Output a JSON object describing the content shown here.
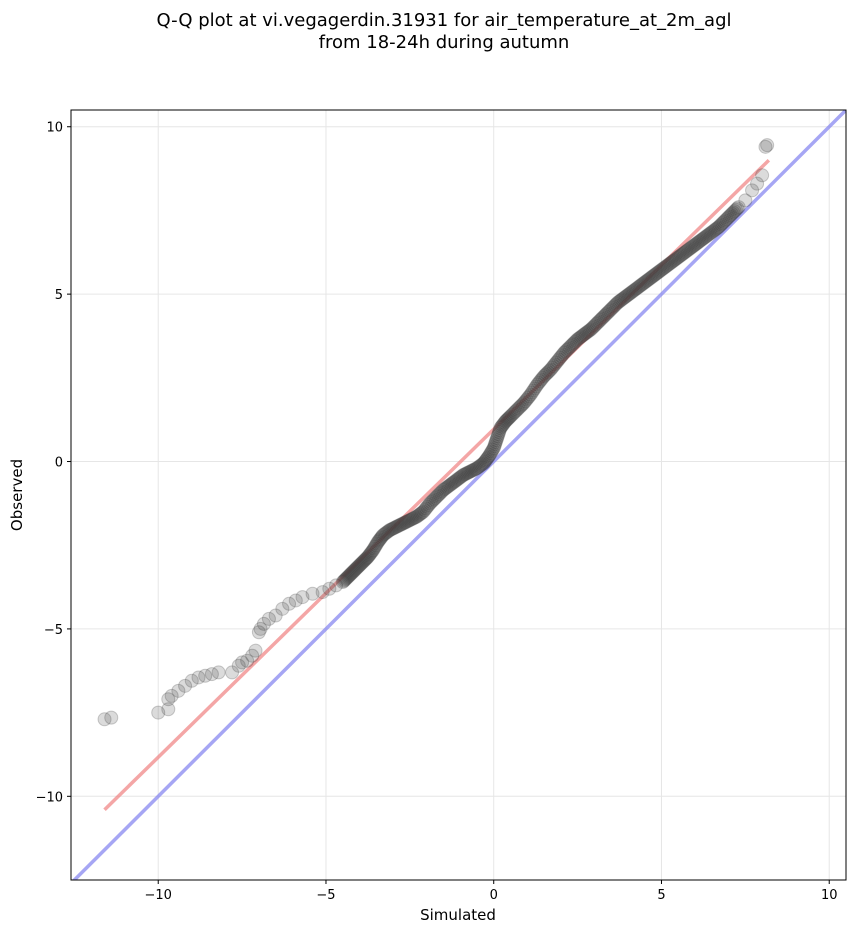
{
  "chart_data": {
    "type": "scatter",
    "title": [
      "Q-Q plot at vi.vegagerdin.31931 for air_temperature_at_2m_agl",
      "from 18-24h during autumn"
    ],
    "xlabel": "Simulated",
    "ylabel": "Observed",
    "xlim": [
      -12.6,
      10.5
    ],
    "ylim": [
      -12.5,
      10.5
    ],
    "xticks": [
      -10,
      -5,
      0,
      5,
      10
    ],
    "yticks": [
      -10,
      -5,
      0,
      5,
      10
    ],
    "xtick_labels": [
      "−10",
      "−5",
      "0",
      "5",
      "10"
    ],
    "ytick_labels": [
      "−10",
      "−5",
      "0",
      "5",
      "10"
    ],
    "grid": true,
    "colors": {
      "points": "#3a3a3a",
      "fit_line": "#f08080",
      "identity_line": "#8080f0",
      "grid": "#e6e6e6"
    },
    "identity_line": {
      "x": [
        -12.6,
        10.5
      ],
      "y": [
        -12.6,
        10.5
      ]
    },
    "fit_line": {
      "x": [
        -11.6,
        8.2
      ],
      "y": [
        -10.4,
        9.0
      ]
    },
    "points": [
      [
        -11.6,
        -7.7
      ],
      [
        -11.4,
        -7.65
      ],
      [
        -10.0,
        -7.5
      ],
      [
        -9.7,
        -7.4
      ],
      [
        -9.7,
        -7.1
      ],
      [
        -9.6,
        -7.0
      ],
      [
        -9.4,
        -6.85
      ],
      [
        -9.2,
        -6.7
      ],
      [
        -9.0,
        -6.55
      ],
      [
        -8.8,
        -6.45
      ],
      [
        -8.6,
        -6.4
      ],
      [
        -8.4,
        -6.35
      ],
      [
        -8.2,
        -6.3
      ],
      [
        -7.8,
        -6.3
      ],
      [
        -7.6,
        -6.1
      ],
      [
        -7.5,
        -6.0
      ],
      [
        -7.35,
        -5.95
      ],
      [
        -7.2,
        -5.8
      ],
      [
        -7.1,
        -5.65
      ],
      [
        -7.0,
        -5.1
      ],
      [
        -6.95,
        -5.0
      ],
      [
        -6.85,
        -4.85
      ],
      [
        -6.7,
        -4.7
      ],
      [
        -6.5,
        -4.6
      ],
      [
        -6.3,
        -4.4
      ],
      [
        -6.1,
        -4.25
      ],
      [
        -5.9,
        -4.15
      ],
      [
        -5.7,
        -4.05
      ],
      [
        -5.4,
        -3.95
      ],
      [
        -5.1,
        -3.9
      ],
      [
        -4.9,
        -3.8
      ],
      [
        -4.7,
        -3.7
      ],
      [
        -4.5,
        -3.6
      ],
      [
        -4.35,
        -3.45
      ],
      [
        -4.2,
        -3.3
      ],
      [
        -4.05,
        -3.15
      ],
      [
        -3.9,
        -3.0
      ],
      [
        -3.75,
        -2.85
      ],
      [
        -3.6,
        -2.65
      ],
      [
        -3.45,
        -2.4
      ],
      [
        -3.3,
        -2.2
      ],
      [
        -3.1,
        -2.05
      ],
      [
        -2.9,
        -1.95
      ],
      [
        -2.7,
        -1.85
      ],
      [
        -2.5,
        -1.75
      ],
      [
        -2.3,
        -1.65
      ],
      [
        -2.1,
        -1.5
      ],
      [
        -1.9,
        -1.25
      ],
      [
        -1.7,
        -1.05
      ],
      [
        -1.5,
        -0.85
      ],
      [
        -1.3,
        -0.7
      ],
      [
        -1.1,
        -0.55
      ],
      [
        -0.9,
        -0.4
      ],
      [
        -0.7,
        -0.3
      ],
      [
        -0.5,
        -0.2
      ],
      [
        -0.3,
        -0.05
      ],
      [
        -0.15,
        0.15
      ],
      [
        0.0,
        0.4
      ],
      [
        0.1,
        0.7
      ],
      [
        0.2,
        1.0
      ],
      [
        0.35,
        1.2
      ],
      [
        0.5,
        1.35
      ],
      [
        0.7,
        1.55
      ],
      [
        0.9,
        1.75
      ],
      [
        1.1,
        2.0
      ],
      [
        1.3,
        2.3
      ],
      [
        1.5,
        2.55
      ],
      [
        1.7,
        2.75
      ],
      [
        1.9,
        3.0
      ],
      [
        2.1,
        3.25
      ],
      [
        2.3,
        3.45
      ],
      [
        2.5,
        3.65
      ],
      [
        2.7,
        3.8
      ],
      [
        2.9,
        3.95
      ],
      [
        3.1,
        4.15
      ],
      [
        3.3,
        4.35
      ],
      [
        3.5,
        4.55
      ],
      [
        3.7,
        4.75
      ],
      [
        3.9,
        4.9
      ],
      [
        4.1,
        5.05
      ],
      [
        4.3,
        5.2
      ],
      [
        4.5,
        5.35
      ],
      [
        4.7,
        5.5
      ],
      [
        4.9,
        5.65
      ],
      [
        5.1,
        5.8
      ],
      [
        5.3,
        5.95
      ],
      [
        5.5,
        6.1
      ],
      [
        5.7,
        6.25
      ],
      [
        5.9,
        6.4
      ],
      [
        6.1,
        6.55
      ],
      [
        6.3,
        6.7
      ],
      [
        6.5,
        6.85
      ],
      [
        6.7,
        7.0
      ],
      [
        6.9,
        7.2
      ],
      [
        7.1,
        7.4
      ],
      [
        7.3,
        7.6
      ],
      [
        7.5,
        7.8
      ],
      [
        7.7,
        8.1
      ],
      [
        7.85,
        8.3
      ],
      [
        8.0,
        8.55
      ],
      [
        8.1,
        9.4
      ],
      [
        8.15,
        9.45
      ]
    ]
  }
}
